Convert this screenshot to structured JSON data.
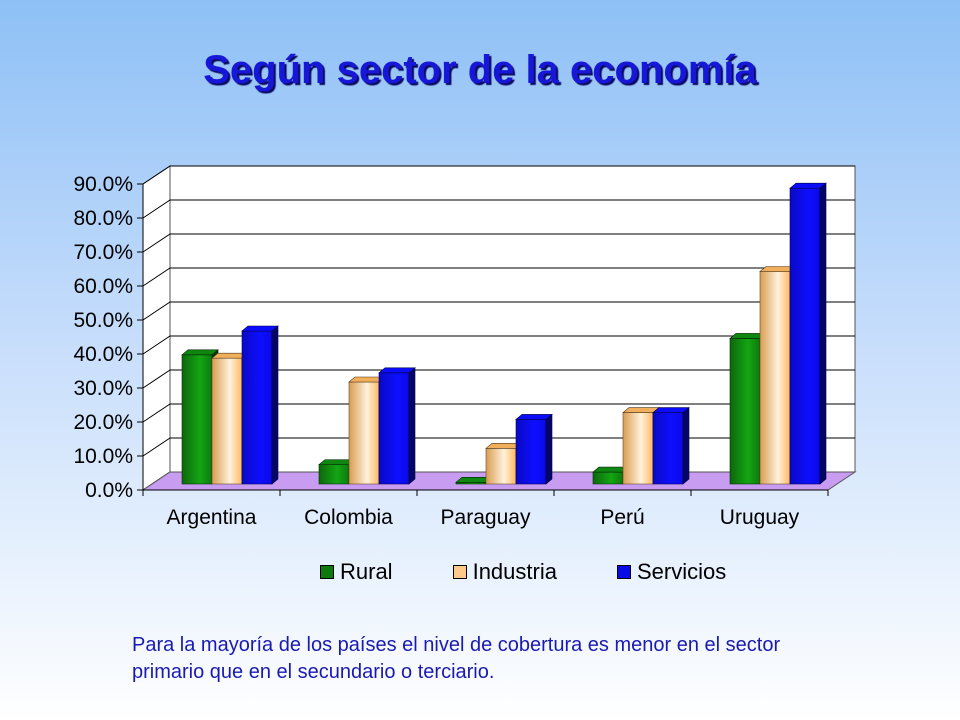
{
  "slide": {
    "title": "Según sector de la economía",
    "note": "Para la mayoría de los países el nivel de cobertura es menor en el sector primario que en el secundario o terciario."
  },
  "colors": {
    "title": "#1717d8",
    "note": "#1a1ab0",
    "floor": "#c89cf0",
    "wall": "#ffffff"
  },
  "chart_data": {
    "type": "bar",
    "three_d": true,
    "categories": [
      "Argentina",
      "Colombia",
      "Paraguay",
      "Perú",
      "Uruguay"
    ],
    "series": [
      {
        "name": "Rural",
        "values": [
          38.0,
          5.7,
          0.5,
          3.5,
          42.8
        ],
        "color": "#0e7a0e"
      },
      {
        "name": "Industria",
        "values": [
          37.0,
          30.0,
          10.5,
          21.0,
          62.5
        ],
        "color": "#ffb860"
      },
      {
        "name": "Servicios",
        "values": [
          45.0,
          32.7,
          19.0,
          21.0,
          87.0
        ],
        "color": "#0a0ae6"
      }
    ],
    "y_ticks": [
      "0.0%",
      "10.0%",
      "20.0%",
      "30.0%",
      "40.0%",
      "50.0%",
      "60.0%",
      "70.0%",
      "80.0%",
      "90.0%"
    ],
    "ylim": [
      0,
      90
    ],
    "grid": true,
    "legend_position": "bottom"
  }
}
